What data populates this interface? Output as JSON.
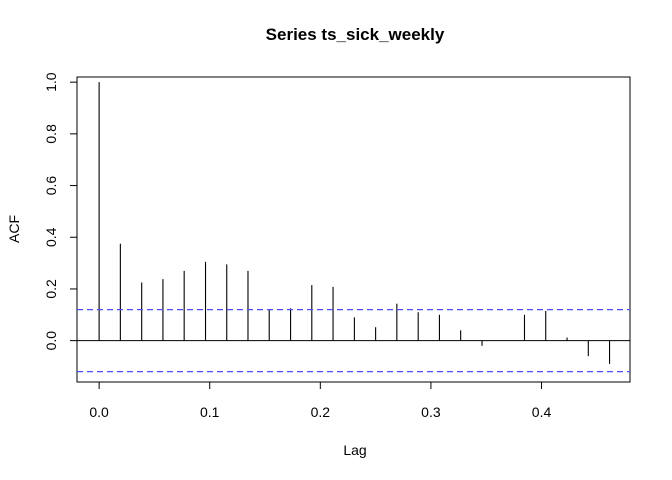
{
  "chart_data": {
    "type": "bar",
    "title": "Series  ts_sick_weekly",
    "xlabel": "Lag",
    "ylabel": "ACF",
    "xlim": [
      -0.02,
      0.48
    ],
    "ylim": [
      -0.16,
      1.02
    ],
    "xticks": [
      0.0,
      0.1,
      0.2,
      0.3,
      0.4
    ],
    "xtick_labels": [
      "0.0",
      "0.1",
      "0.2",
      "0.3",
      "0.4"
    ],
    "yticks": [
      0.0,
      0.2,
      0.4,
      0.6,
      0.8,
      1.0
    ],
    "ytick_labels": [
      "0.0",
      "0.2",
      "0.4",
      "0.6",
      "0.8",
      "1.0"
    ],
    "grid": false,
    "lags": [
      0.0,
      0.0192,
      0.0385,
      0.0577,
      0.0769,
      0.0962,
      0.1154,
      0.1346,
      0.1538,
      0.1731,
      0.1923,
      0.2115,
      0.2308,
      0.25,
      0.2692,
      0.2885,
      0.3077,
      0.3269,
      0.3462,
      0.3654,
      0.3846,
      0.4038,
      0.4231,
      0.4423,
      0.4615
    ],
    "acf": [
      1.0,
      0.375,
      0.225,
      0.238,
      0.27,
      0.305,
      0.295,
      0.27,
      0.12,
      0.125,
      0.215,
      0.208,
      0.09,
      0.052,
      0.143,
      0.11,
      0.1,
      0.04,
      -0.02,
      0.0,
      0.1,
      0.115,
      0.012,
      -0.06,
      -0.09
    ],
    "confidence_bound": 0.12,
    "colors": {
      "bars": "#000000",
      "zero_line": "#000000",
      "confidence": "#4d4dff"
    }
  }
}
